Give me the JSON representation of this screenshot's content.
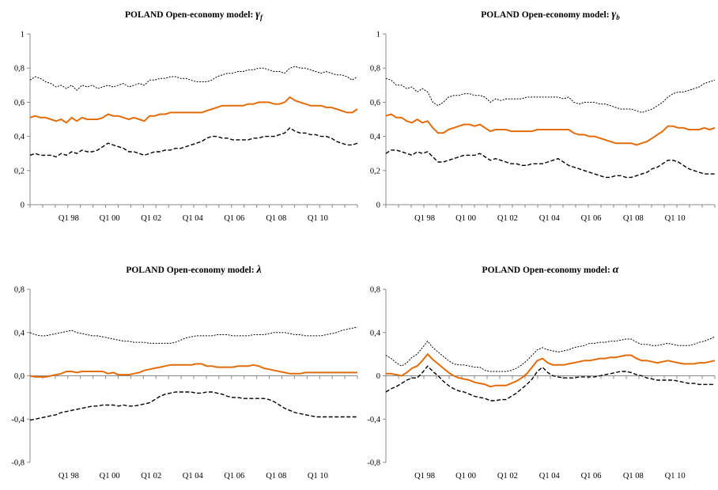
{
  "chart_data": [
    {
      "type": "line",
      "title_prefix": "POLAND  Open-economy  model: ",
      "title_symbol": "γ",
      "title_subscript": "f",
      "x_ticks": [
        "Q1 98",
        "Q1 00",
        "Q1 02",
        "Q1 04",
        "Q1 06",
        "Q1 08",
        "Q1 10"
      ],
      "ylim": [
        0,
        1
      ],
      "y_ticks": [
        "0",
        "0,2",
        "0,4",
        "0,6",
        "0,8",
        "1"
      ],
      "y_tick_values": [
        0,
        0.2,
        0.4,
        0.6,
        0.8,
        1.0
      ],
      "zero_line": false,
      "series": [
        {
          "role": "upper",
          "color": "#000000",
          "style": "dotted",
          "values": [
            0.73,
            0.75,
            0.74,
            0.72,
            0.71,
            0.69,
            0.7,
            0.68,
            0.7,
            0.67,
            0.7,
            0.69,
            0.7,
            0.68,
            0.69,
            0.7,
            0.69,
            0.7,
            0.71,
            0.69,
            0.7,
            0.71,
            0.7,
            0.73,
            0.73,
            0.74,
            0.74,
            0.75,
            0.75,
            0.74,
            0.74,
            0.73,
            0.72,
            0.72,
            0.72,
            0.73,
            0.75,
            0.76,
            0.77,
            0.77,
            0.78,
            0.78,
            0.79,
            0.79,
            0.8,
            0.8,
            0.79,
            0.78,
            0.78,
            0.77,
            0.8,
            0.81,
            0.8,
            0.8,
            0.79,
            0.78,
            0.77,
            0.78,
            0.77,
            0.76,
            0.76,
            0.75,
            0.73,
            0.75
          ]
        },
        {
          "role": "point",
          "color": "#E36C0A",
          "style": "solid",
          "values": [
            0.51,
            0.52,
            0.51,
            0.51,
            0.5,
            0.49,
            0.5,
            0.48,
            0.51,
            0.49,
            0.51,
            0.5,
            0.5,
            0.5,
            0.51,
            0.53,
            0.52,
            0.52,
            0.51,
            0.5,
            0.51,
            0.5,
            0.49,
            0.52,
            0.52,
            0.53,
            0.53,
            0.54,
            0.54,
            0.54,
            0.54,
            0.54,
            0.54,
            0.54,
            0.55,
            0.56,
            0.57,
            0.58,
            0.58,
            0.58,
            0.58,
            0.58,
            0.59,
            0.59,
            0.6,
            0.6,
            0.6,
            0.59,
            0.59,
            0.6,
            0.63,
            0.61,
            0.6,
            0.59,
            0.58,
            0.58,
            0.58,
            0.57,
            0.57,
            0.56,
            0.55,
            0.54,
            0.54,
            0.56
          ]
        },
        {
          "role": "lower",
          "color": "#000000",
          "style": "dashed",
          "values": [
            0.29,
            0.3,
            0.29,
            0.29,
            0.29,
            0.28,
            0.3,
            0.29,
            0.31,
            0.3,
            0.32,
            0.31,
            0.31,
            0.32,
            0.34,
            0.36,
            0.35,
            0.34,
            0.33,
            0.31,
            0.31,
            0.3,
            0.29,
            0.3,
            0.31,
            0.31,
            0.32,
            0.32,
            0.33,
            0.33,
            0.34,
            0.35,
            0.36,
            0.37,
            0.39,
            0.4,
            0.4,
            0.39,
            0.39,
            0.38,
            0.38,
            0.38,
            0.38,
            0.39,
            0.39,
            0.4,
            0.4,
            0.4,
            0.41,
            0.42,
            0.45,
            0.43,
            0.42,
            0.42,
            0.41,
            0.41,
            0.4,
            0.4,
            0.39,
            0.37,
            0.36,
            0.35,
            0.35,
            0.36
          ]
        }
      ]
    },
    {
      "type": "line",
      "title_prefix": "POLAND  Open-economy  model: ",
      "title_symbol": "γ",
      "title_subscript": "b",
      "x_ticks": [
        "Q1 98",
        "Q1 00",
        "Q1 02",
        "Q1 04",
        "Q1 06",
        "Q1 08",
        "Q1 10"
      ],
      "ylim": [
        0,
        1
      ],
      "y_ticks": [
        "0",
        "0,2",
        "0,4",
        "0,6",
        "0,8",
        "1"
      ],
      "y_tick_values": [
        0,
        0.2,
        0.4,
        0.6,
        0.8,
        1.0
      ],
      "zero_line": false,
      "series": [
        {
          "role": "upper",
          "color": "#000000",
          "style": "dotted",
          "values": [
            0.74,
            0.73,
            0.7,
            0.7,
            0.68,
            0.69,
            0.66,
            0.68,
            0.66,
            0.6,
            0.58,
            0.6,
            0.63,
            0.64,
            0.64,
            0.65,
            0.65,
            0.64,
            0.64,
            0.63,
            0.6,
            0.62,
            0.61,
            0.62,
            0.62,
            0.62,
            0.62,
            0.63,
            0.63,
            0.63,
            0.63,
            0.63,
            0.63,
            0.63,
            0.62,
            0.63,
            0.6,
            0.59,
            0.6,
            0.6,
            0.6,
            0.59,
            0.59,
            0.58,
            0.57,
            0.56,
            0.56,
            0.56,
            0.55,
            0.54,
            0.55,
            0.56,
            0.58,
            0.6,
            0.63,
            0.65,
            0.66,
            0.66,
            0.67,
            0.68,
            0.69,
            0.71,
            0.72,
            0.73
          ]
        },
        {
          "role": "point",
          "color": "#E36C0A",
          "style": "solid",
          "values": [
            0.52,
            0.53,
            0.51,
            0.51,
            0.49,
            0.48,
            0.5,
            0.48,
            0.49,
            0.45,
            0.42,
            0.42,
            0.44,
            0.45,
            0.46,
            0.47,
            0.47,
            0.46,
            0.47,
            0.45,
            0.43,
            0.44,
            0.44,
            0.44,
            0.43,
            0.43,
            0.43,
            0.43,
            0.43,
            0.44,
            0.44,
            0.44,
            0.44,
            0.44,
            0.44,
            0.44,
            0.42,
            0.41,
            0.41,
            0.4,
            0.4,
            0.39,
            0.38,
            0.37,
            0.36,
            0.36,
            0.36,
            0.36,
            0.35,
            0.36,
            0.37,
            0.39,
            0.41,
            0.43,
            0.46,
            0.46,
            0.45,
            0.45,
            0.44,
            0.44,
            0.44,
            0.45,
            0.44,
            0.45
          ]
        },
        {
          "role": "lower",
          "color": "#000000",
          "style": "dashed",
          "values": [
            0.3,
            0.32,
            0.32,
            0.31,
            0.3,
            0.29,
            0.31,
            0.3,
            0.31,
            0.28,
            0.25,
            0.25,
            0.26,
            0.27,
            0.28,
            0.29,
            0.29,
            0.29,
            0.3,
            0.28,
            0.26,
            0.27,
            0.26,
            0.25,
            0.24,
            0.24,
            0.23,
            0.23,
            0.24,
            0.24,
            0.24,
            0.25,
            0.26,
            0.27,
            0.25,
            0.23,
            0.22,
            0.21,
            0.2,
            0.19,
            0.18,
            0.17,
            0.16,
            0.16,
            0.17,
            0.17,
            0.16,
            0.16,
            0.17,
            0.18,
            0.19,
            0.21,
            0.22,
            0.24,
            0.26,
            0.26,
            0.25,
            0.23,
            0.21,
            0.2,
            0.19,
            0.18,
            0.18,
            0.18
          ]
        }
      ]
    },
    {
      "type": "line",
      "title_prefix": "POLAND  Open-economy  model: ",
      "title_symbol": "λ",
      "title_subscript": "",
      "x_ticks": [
        "Q1 98",
        "Q1 00",
        "Q1 02",
        "Q1 04",
        "Q1 06",
        "Q1 08",
        "Q1 10"
      ],
      "ylim": [
        -0.8,
        0.8
      ],
      "y_ticks": [
        "-0,8",
        "-0,4",
        "0,0",
        "0,4",
        "0,8"
      ],
      "y_tick_values": [
        -0.8,
        -0.4,
        0.0,
        0.4,
        0.8
      ],
      "zero_line": true,
      "series": [
        {
          "role": "upper",
          "color": "#000000",
          "style": "dotted",
          "values": [
            0.4,
            0.38,
            0.37,
            0.37,
            0.38,
            0.39,
            0.4,
            0.41,
            0.42,
            0.4,
            0.39,
            0.38,
            0.37,
            0.37,
            0.36,
            0.35,
            0.34,
            0.33,
            0.32,
            0.32,
            0.31,
            0.31,
            0.31,
            0.3,
            0.3,
            0.3,
            0.3,
            0.3,
            0.31,
            0.33,
            0.35,
            0.36,
            0.37,
            0.37,
            0.37,
            0.37,
            0.38,
            0.38,
            0.38,
            0.37,
            0.37,
            0.37,
            0.37,
            0.38,
            0.38,
            0.38,
            0.39,
            0.4,
            0.4,
            0.4,
            0.39,
            0.38,
            0.38,
            0.37,
            0.37,
            0.37,
            0.37,
            0.38,
            0.39,
            0.4,
            0.42,
            0.43,
            0.44,
            0.45
          ]
        },
        {
          "role": "point",
          "color": "#E36C0A",
          "style": "solid",
          "values": [
            0.0,
            -0.01,
            -0.01,
            -0.01,
            0.0,
            0.01,
            0.02,
            0.04,
            0.04,
            0.03,
            0.04,
            0.04,
            0.04,
            0.04,
            0.04,
            0.02,
            0.03,
            0.01,
            0.01,
            0.01,
            0.02,
            0.03,
            0.05,
            0.06,
            0.07,
            0.08,
            0.09,
            0.1,
            0.1,
            0.1,
            0.1,
            0.1,
            0.11,
            0.11,
            0.09,
            0.09,
            0.08,
            0.08,
            0.08,
            0.08,
            0.09,
            0.09,
            0.09,
            0.1,
            0.09,
            0.07,
            0.06,
            0.05,
            0.04,
            0.03,
            0.02,
            0.02,
            0.02,
            0.03,
            0.03,
            0.03,
            0.03,
            0.03,
            0.03,
            0.03,
            0.03,
            0.03,
            0.03,
            0.03
          ]
        },
        {
          "role": "lower",
          "color": "#000000",
          "style": "dashed",
          "values": [
            -0.41,
            -0.4,
            -0.39,
            -0.38,
            -0.37,
            -0.36,
            -0.34,
            -0.33,
            -0.32,
            -0.31,
            -0.3,
            -0.29,
            -0.28,
            -0.28,
            -0.27,
            -0.27,
            -0.27,
            -0.28,
            -0.27,
            -0.28,
            -0.28,
            -0.27,
            -0.26,
            -0.25,
            -0.22,
            -0.19,
            -0.17,
            -0.16,
            -0.15,
            -0.15,
            -0.15,
            -0.15,
            -0.16,
            -0.16,
            -0.15,
            -0.15,
            -0.16,
            -0.17,
            -0.19,
            -0.2,
            -0.2,
            -0.21,
            -0.21,
            -0.21,
            -0.21,
            -0.21,
            -0.22,
            -0.24,
            -0.27,
            -0.3,
            -0.32,
            -0.34,
            -0.35,
            -0.36,
            -0.37,
            -0.38,
            -0.38,
            -0.38,
            -0.38,
            -0.38,
            -0.38,
            -0.38,
            -0.38,
            -0.38
          ]
        }
      ]
    },
    {
      "type": "line",
      "title_prefix": "POLAND  Open-economy  model: ",
      "title_symbol": "α",
      "title_subscript": "",
      "x_ticks": [
        "Q1 98",
        "Q1 00",
        "Q1 02",
        "Q1 04",
        "Q1 06",
        "Q1 08",
        "Q1 10"
      ],
      "ylim": [
        -0.8,
        0.8
      ],
      "y_ticks": [
        "-0,8",
        "-0,4",
        "0",
        "0,4",
        "0,8"
      ],
      "y_tick_values": [
        -0.8,
        -0.4,
        0.0,
        0.4,
        0.8
      ],
      "zero_line": true,
      "series": [
        {
          "role": "upper",
          "color": "#000000",
          "style": "dotted",
          "values": [
            0.19,
            0.16,
            0.12,
            0.09,
            0.12,
            0.17,
            0.2,
            0.26,
            0.32,
            0.26,
            0.22,
            0.18,
            0.14,
            0.11,
            0.1,
            0.1,
            0.09,
            0.08,
            0.08,
            0.05,
            0.04,
            0.04,
            0.04,
            0.04,
            0.05,
            0.07,
            0.1,
            0.14,
            0.19,
            0.24,
            0.26,
            0.24,
            0.23,
            0.22,
            0.23,
            0.24,
            0.26,
            0.27,
            0.28,
            0.3,
            0.3,
            0.31,
            0.31,
            0.32,
            0.32,
            0.33,
            0.34,
            0.34,
            0.31,
            0.29,
            0.29,
            0.28,
            0.28,
            0.29,
            0.3,
            0.29,
            0.28,
            0.28,
            0.28,
            0.29,
            0.31,
            0.32,
            0.34,
            0.36
          ]
        },
        {
          "role": "point",
          "color": "#E36C0A",
          "style": "solid",
          "values": [
            0.02,
            0.02,
            0.01,
            0.0,
            0.03,
            0.07,
            0.09,
            0.14,
            0.2,
            0.15,
            0.11,
            0.07,
            0.03,
            0.0,
            -0.02,
            -0.03,
            -0.04,
            -0.06,
            -0.07,
            -0.08,
            -0.1,
            -0.09,
            -0.09,
            -0.09,
            -0.07,
            -0.05,
            -0.02,
            0.02,
            0.08,
            0.14,
            0.16,
            0.12,
            0.1,
            0.1,
            0.1,
            0.11,
            0.12,
            0.13,
            0.14,
            0.14,
            0.15,
            0.16,
            0.16,
            0.17,
            0.17,
            0.18,
            0.19,
            0.19,
            0.16,
            0.14,
            0.14,
            0.13,
            0.12,
            0.13,
            0.14,
            0.13,
            0.12,
            0.11,
            0.11,
            0.11,
            0.12,
            0.12,
            0.13,
            0.14
          ]
        },
        {
          "role": "lower",
          "color": "#000000",
          "style": "dashed",
          "values": [
            -0.15,
            -0.12,
            -0.1,
            -0.07,
            -0.04,
            -0.02,
            -0.02,
            0.03,
            0.09,
            0.04,
            0.0,
            -0.05,
            -0.09,
            -0.12,
            -0.14,
            -0.15,
            -0.17,
            -0.19,
            -0.2,
            -0.21,
            -0.23,
            -0.23,
            -0.22,
            -0.22,
            -0.19,
            -0.16,
            -0.12,
            -0.08,
            -0.03,
            0.04,
            0.08,
            0.03,
            0.0,
            -0.01,
            -0.02,
            -0.02,
            -0.02,
            -0.01,
            -0.01,
            -0.01,
            -0.01,
            0.0,
            0.01,
            0.02,
            0.03,
            0.04,
            0.04,
            0.03,
            0.01,
            0.0,
            -0.02,
            -0.03,
            -0.04,
            -0.04,
            -0.04,
            -0.04,
            -0.05,
            -0.06,
            -0.07,
            -0.07,
            -0.08,
            -0.08,
            -0.08,
            -0.08
          ]
        }
      ]
    }
  ]
}
